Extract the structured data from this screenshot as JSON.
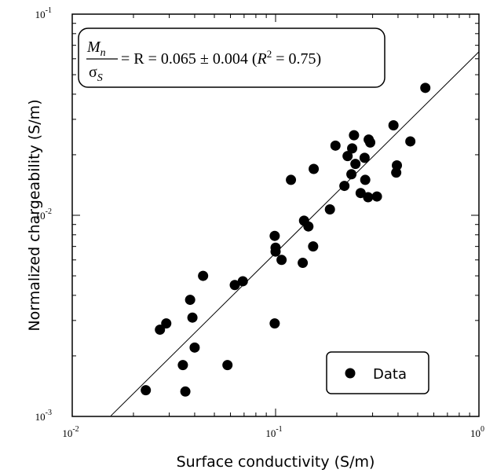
{
  "chart_data": {
    "type": "scatter",
    "title": "",
    "xlabel": "Surface conductivity (S/m)",
    "ylabel": "Normalized chargeability (S/m)",
    "xscale": "log",
    "yscale": "log",
    "xlim": [
      0.01,
      1
    ],
    "ylim": [
      0.001,
      0.1
    ],
    "x_tick_labels": [
      {
        "value": 0.01,
        "mantissa": "10",
        "exp": "-2"
      },
      {
        "value": 0.1,
        "mantissa": "10",
        "exp": "-1"
      },
      {
        "value": 1,
        "mantissa": "10",
        "exp": "0"
      }
    ],
    "y_tick_labels": [
      {
        "value": 0.001,
        "mantissa": "10",
        "exp": "-3"
      },
      {
        "value": 0.01,
        "mantissa": "10",
        "exp": "-2"
      },
      {
        "value": 0.1,
        "mantissa": "10",
        "exp": "-1"
      }
    ],
    "grid": false,
    "legend": {
      "placement": "bottom-right",
      "entries": [
        "Data"
      ]
    },
    "series": [
      {
        "name": "Data",
        "marker": "filled-circle",
        "color": "#000000",
        "points": [
          [
            0.023,
            0.00135
          ],
          [
            0.027,
            0.0027
          ],
          [
            0.029,
            0.0029
          ],
          [
            0.035,
            0.0018
          ],
          [
            0.036,
            0.00133
          ],
          [
            0.038,
            0.0038
          ],
          [
            0.039,
            0.0031
          ],
          [
            0.04,
            0.0022
          ],
          [
            0.044,
            0.005
          ],
          [
            0.058,
            0.0018
          ],
          [
            0.063,
            0.0045
          ],
          [
            0.069,
            0.0047
          ],
          [
            0.099,
            0.0029
          ],
          [
            0.099,
            0.0079
          ],
          [
            0.1,
            0.0069
          ],
          [
            0.1,
            0.0066
          ],
          [
            0.107,
            0.006
          ],
          [
            0.119,
            0.015
          ],
          [
            0.136,
            0.0058
          ],
          [
            0.138,
            0.0094
          ],
          [
            0.145,
            0.0088
          ],
          [
            0.153,
            0.007
          ],
          [
            0.154,
            0.017
          ],
          [
            0.185,
            0.0107
          ],
          [
            0.197,
            0.0222
          ],
          [
            0.218,
            0.014
          ],
          [
            0.226,
            0.0197
          ],
          [
            0.236,
            0.016
          ],
          [
            0.238,
            0.0215
          ],
          [
            0.243,
            0.025
          ],
          [
            0.247,
            0.018
          ],
          [
            0.262,
            0.0129
          ],
          [
            0.274,
            0.0193
          ],
          [
            0.276,
            0.015
          ],
          [
            0.285,
            0.0123
          ],
          [
            0.287,
            0.0238
          ],
          [
            0.292,
            0.023
          ],
          [
            0.315,
            0.0124
          ],
          [
            0.38,
            0.028
          ],
          [
            0.392,
            0.0163
          ],
          [
            0.395,
            0.0177
          ],
          [
            0.46,
            0.0233
          ],
          [
            0.545,
            0.043
          ]
        ]
      }
    ],
    "fit_line": {
      "slope_R": 0.065,
      "x": [
        0.0155,
        1.0
      ],
      "color": "#000000"
    },
    "annotation": {
      "fraction_numerator": "M",
      "numerator_sub": "n",
      "fraction_denominator": "σ",
      "denominator_sub": "S",
      "equation": "= R = 0.065 ± 0.004 (",
      "r2_symbol": "R",
      "r2_exp": "2",
      "r2_value": " = 0.75)"
    }
  }
}
